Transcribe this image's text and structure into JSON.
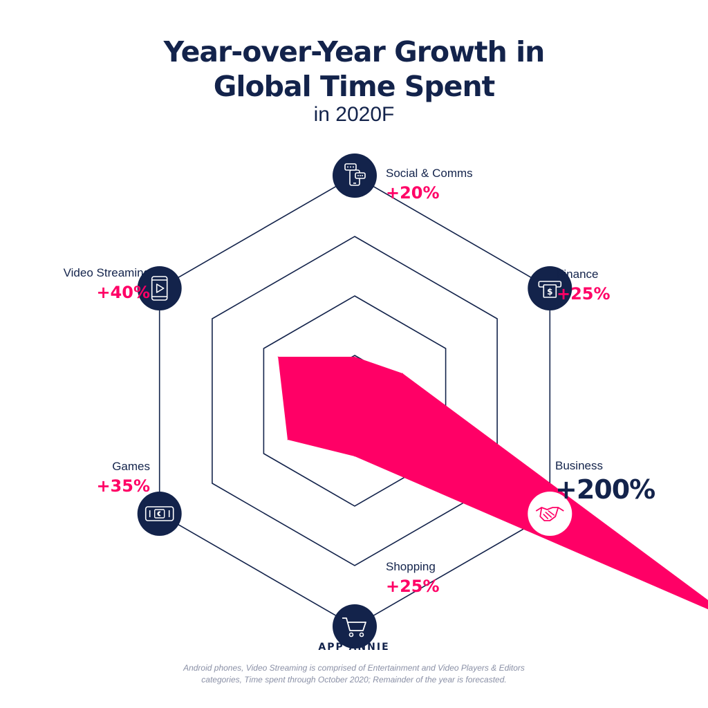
{
  "header": {
    "title_line1": "Year-over-Year Growth in",
    "title_line2": "Global Time Spent",
    "subtitle": "in 2020F"
  },
  "chart_data": {
    "type": "radar",
    "title": "Year-over-Year Growth in Global Time Spent",
    "subtitle": "in 2020F",
    "categories": [
      "Social & Comms",
      "Finance",
      "Business",
      "Shopping",
      "Games",
      "Video Streaming"
    ],
    "series": [
      {
        "values": [
          20,
          25,
          200,
          25,
          35,
          40
        ],
        "labels": [
          "+20%",
          "+25%",
          "+200%",
          "+25%",
          "+35%",
          "+40%"
        ],
        "color": "#ff0066"
      }
    ],
    "icons": [
      "chat-bubbles-phone-icon",
      "atm-cash-icon",
      "handshake-icon",
      "shopping-cart-icon",
      "gamepad-phone-icon",
      "video-play-phone-icon"
    ],
    "grid": true,
    "legend": "none"
  },
  "colors": {
    "navy": "#13234b",
    "accent": "#ff0066",
    "footnote": "#8a90a6"
  },
  "footer": {
    "brand": "APP ANNIE",
    "note": "Android phones, Video Streaming is comprised of Entertainment and Video Players & Editors categories, Time spent through October 2020; Remainder of the year is forecasted."
  }
}
